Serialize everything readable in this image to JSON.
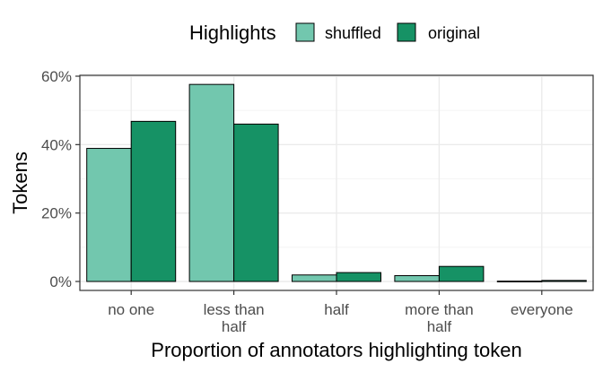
{
  "colors": {
    "shuffled": "#72C7AE",
    "original": "#169265",
    "grid": "#EBEBEB",
    "axis_text": "#4D4D4D",
    "title_text": "#000000"
  },
  "chart_data": {
    "type": "bar",
    "xlabel": "Proportion of annotators highlighting token",
    "ylabel": "Tokens",
    "ylim": [
      0,
      60
    ],
    "y_ticks": [
      {
        "value": 0,
        "label": "0%"
      },
      {
        "value": 20,
        "label": "20%"
      },
      {
        "value": 40,
        "label": "40%"
      },
      {
        "value": 60,
        "label": "60%"
      }
    ],
    "categories": [
      "no one",
      "less than half",
      "half",
      "more than half",
      "everyone"
    ],
    "category_lines": [
      [
        "no one"
      ],
      [
        "less than",
        "half"
      ],
      [
        "half"
      ],
      [
        "more than",
        "half"
      ],
      [
        "everyone"
      ]
    ],
    "series": [
      {
        "name": "shuffled",
        "values": [
          38.9,
          57.6,
          1.9,
          1.7,
          0.1
        ]
      },
      {
        "name": "original",
        "values": [
          46.8,
          46.0,
          2.6,
          4.4,
          0.3
        ]
      }
    ],
    "legend": {
      "title": "Highlights",
      "position": "top"
    },
    "grid": true
  }
}
